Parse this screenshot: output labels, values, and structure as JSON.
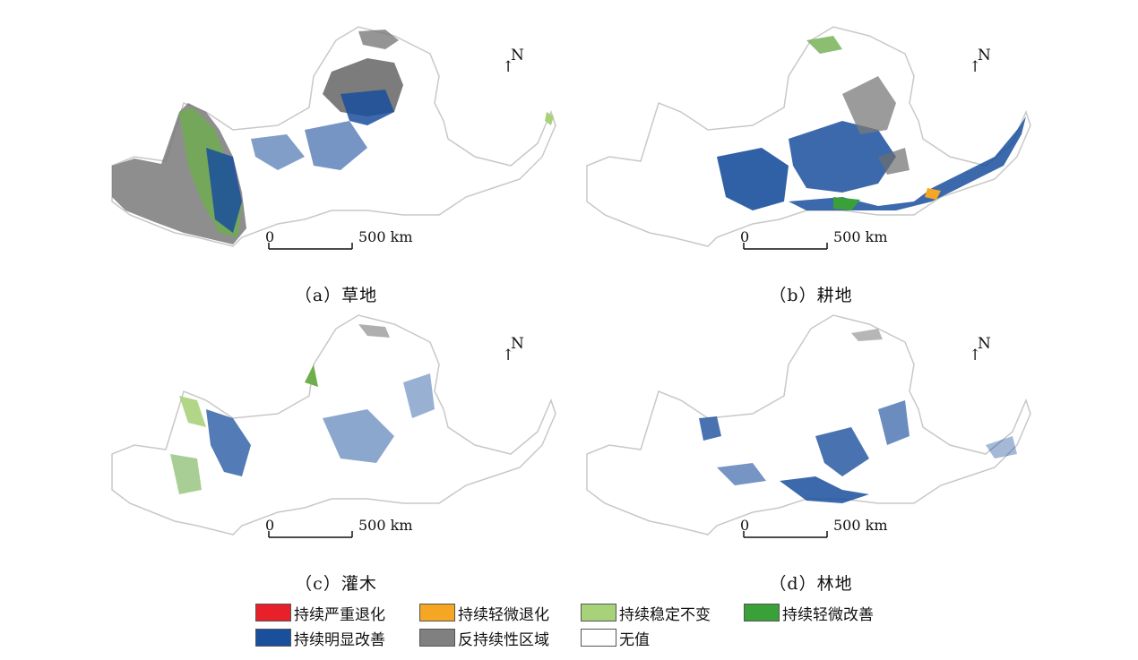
{
  "panels": [
    {
      "id": "a",
      "caption": "（a）草地"
    },
    {
      "id": "b",
      "caption": "（b）耕地"
    },
    {
      "id": "c",
      "caption": "（c）灌木"
    },
    {
      "id": "d",
      "caption": "（d）林地"
    }
  ],
  "north_label": "N",
  "scale": {
    "zero": "0",
    "end": "500 km"
  },
  "legend": [
    {
      "label": "持续严重退化",
      "color": "#e8202a"
    },
    {
      "label": "持续轻微退化",
      "color": "#f5a623"
    },
    {
      "label": "持续稳定不变",
      "color": "#a8d27a"
    },
    {
      "label": "持续轻微改善",
      "color": "#3aa03a"
    },
    {
      "label": "持续明显改善",
      "color": "#1a4f9c"
    },
    {
      "label": "反持续性区域",
      "color": "#808080"
    },
    {
      "label": "无值",
      "color": "#ffffff"
    }
  ]
}
